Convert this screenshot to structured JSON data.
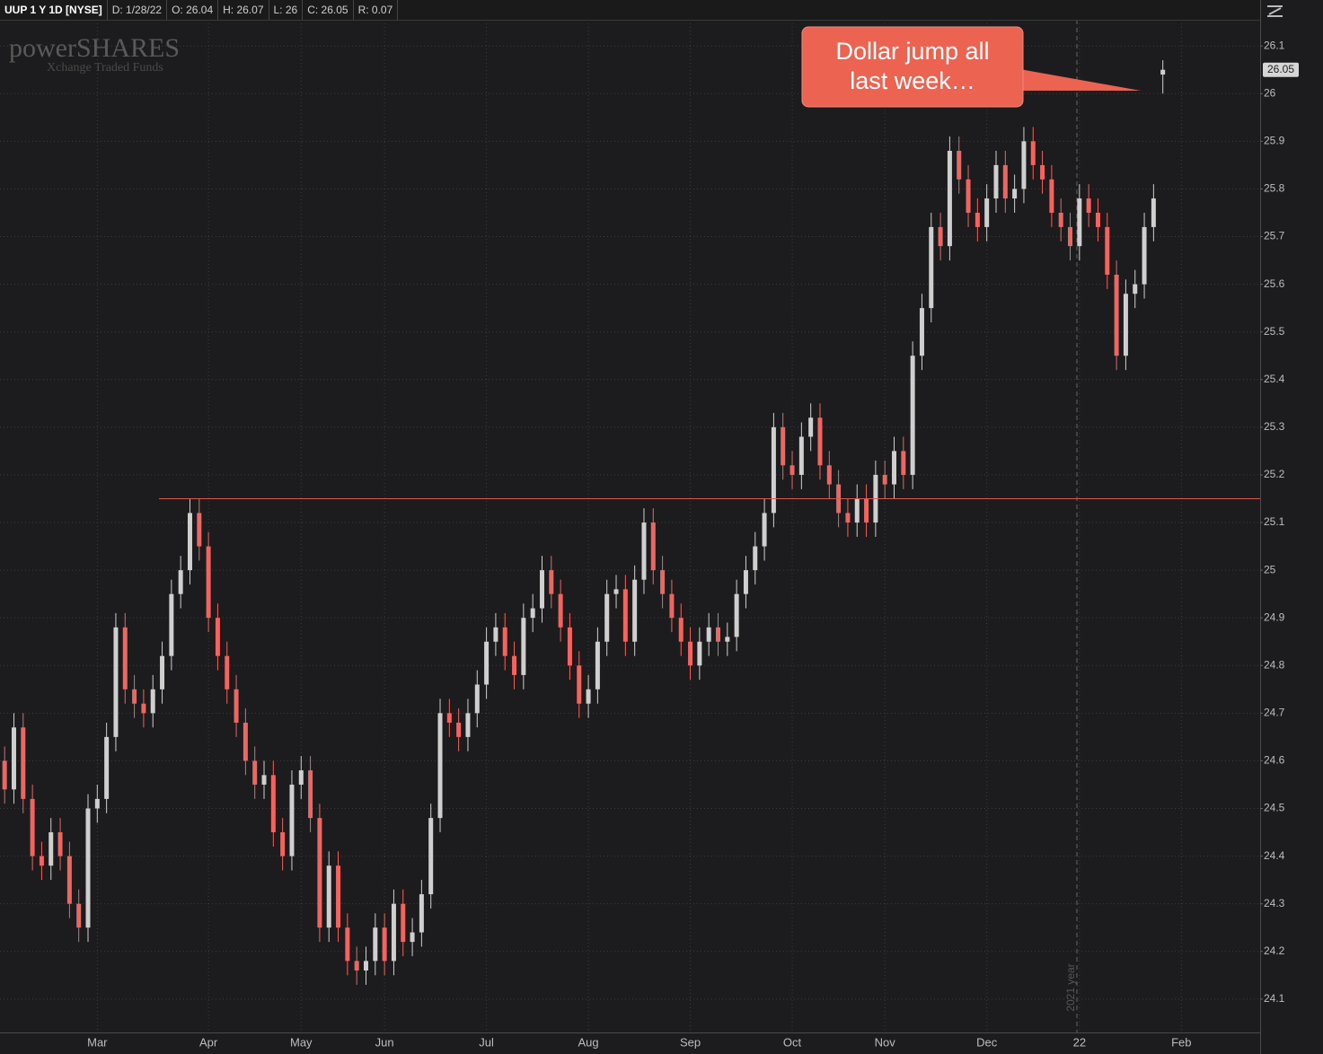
{
  "chart_data": {
    "type": "candlestick",
    "title": "UUP 1 Y 1D [NYSE]",
    "header_fields": [
      "D: 1/28/22",
      "O: 26.04",
      "H: 26.07",
      "L: 26",
      "C: 26.05",
      "R: 0.07"
    ],
    "watermark": [
      "powerSHARES",
      "Xchange Traded Funds"
    ],
    "annotation": [
      "Dollar jump all",
      "last week…"
    ],
    "year_marker": "2021 year",
    "last_price": 26.05,
    "hline": 25.15,
    "hline_color": "#e0554d",
    "up_color": "#cfcfcf",
    "down_color": "#f06560",
    "grid": true,
    "ylim": [
      24.03,
      26.155
    ],
    "yticks": [
      24.1,
      24.2,
      24.3,
      24.4,
      24.5,
      24.6,
      24.7,
      24.8,
      24.9,
      25,
      25.1,
      25.2,
      25.3,
      25.4,
      25.5,
      25.6,
      25.7,
      25.8,
      25.9,
      26,
      26.1
    ],
    "categories": [
      null,
      null,
      null,
      null,
      null,
      null,
      null,
      null,
      null,
      null,
      "Mar",
      null,
      null,
      null,
      null,
      null,
      null,
      null,
      null,
      null,
      null,
      null,
      "Apr",
      null,
      null,
      null,
      null,
      null,
      null,
      null,
      null,
      null,
      "May",
      null,
      null,
      null,
      null,
      null,
      null,
      null,
      null,
      "Jun",
      null,
      null,
      null,
      null,
      null,
      null,
      null,
      null,
      null,
      null,
      "Jul",
      null,
      null,
      null,
      null,
      null,
      null,
      null,
      null,
      null,
      null,
      "Aug",
      null,
      null,
      null,
      null,
      null,
      null,
      null,
      null,
      null,
      null,
      "Sep",
      null,
      null,
      null,
      null,
      null,
      null,
      null,
      null,
      null,
      null,
      "Oct",
      null,
      null,
      null,
      null,
      null,
      null,
      null,
      null,
      null,
      "Nov",
      null,
      null,
      null,
      null,
      null,
      null,
      null,
      null,
      null,
      null,
      "Dec",
      null,
      null,
      null,
      null,
      null,
      null,
      null,
      null,
      null,
      "22",
      null,
      null,
      null,
      null,
      null,
      null,
      null,
      null,
      null,
      null,
      "Feb",
      null,
      null,
      null,
      null,
      null,
      null,
      null,
      null
    ],
    "open": [
      24.6,
      24.54,
      24.67,
      24.52,
      24.4,
      24.38,
      24.45,
      24.4,
      24.3,
      24.25,
      24.5,
      24.52,
      24.65,
      24.88,
      24.75,
      24.72,
      24.7,
      24.75,
      24.82,
      24.95,
      25.0,
      25.12,
      25.05,
      24.9,
      24.82,
      24.75,
      24.68,
      24.6,
      24.55,
      24.57,
      24.45,
      24.4,
      24.55,
      24.58,
      24.48,
      24.25,
      24.38,
      24.25,
      24.18,
      24.16,
      24.18,
      24.25,
      24.18,
      24.3,
      24.22,
      24.24,
      24.32,
      24.48,
      24.7,
      24.68,
      24.65,
      24.7,
      24.76,
      24.85,
      24.88,
      24.82,
      24.78,
      24.9,
      24.92,
      25.0,
      24.95,
      24.88,
      24.8,
      24.72,
      24.75,
      24.85,
      24.95,
      24.96,
      24.85,
      24.98,
      25.1,
      25.0,
      24.95,
      24.9,
      24.85,
      24.8,
      24.85,
      24.88,
      24.85,
      24.86,
      24.95,
      25.0,
      25.05,
      25.12,
      25.3,
      25.22,
      25.2,
      25.28,
      25.32,
      25.22,
      25.18,
      25.12,
      25.1,
      25.15,
      25.1,
      25.2,
      25.18,
      25.25,
      25.2,
      25.45,
      25.55,
      25.72,
      25.68,
      25.88,
      25.82,
      25.75,
      25.72,
      25.78,
      25.85,
      25.78,
      25.8,
      25.9,
      25.85,
      25.82,
      25.75,
      25.72,
      25.68,
      25.78,
      25.75,
      25.72,
      25.62,
      25.45,
      25.58,
      25.6,
      25.72,
      26.04,
      null,
      null,
      null,
      null,
      null,
      null,
      null,
      null,
      null,
      null
    ],
    "high": [
      24.63,
      24.7,
      24.7,
      24.55,
      24.43,
      24.48,
      24.48,
      24.43,
      24.33,
      24.53,
      24.55,
      24.68,
      24.91,
      24.91,
      24.78,
      24.75,
      24.78,
      24.85,
      24.98,
      25.03,
      25.15,
      25.15,
      25.08,
      24.93,
      24.85,
      24.78,
      24.71,
      24.63,
      24.6,
      24.6,
      24.48,
      24.58,
      24.61,
      24.61,
      24.51,
      24.41,
      24.41,
      24.28,
      24.21,
      24.21,
      24.28,
      24.28,
      24.33,
      24.33,
      24.27,
      24.35,
      24.51,
      24.73,
      24.73,
      24.71,
      24.73,
      24.79,
      24.88,
      24.91,
      24.91,
      24.85,
      24.93,
      24.95,
      25.03,
      25.03,
      24.98,
      24.91,
      24.83,
      24.78,
      24.88,
      24.98,
      24.99,
      24.99,
      25.01,
      25.13,
      25.13,
      25.03,
      24.98,
      24.93,
      24.88,
      24.88,
      24.91,
      24.91,
      24.89,
      24.98,
      25.03,
      25.08,
      25.15,
      25.33,
      25.33,
      25.25,
      25.31,
      25.35,
      25.35,
      25.25,
      25.21,
      25.15,
      25.18,
      25.18,
      25.23,
      25.23,
      25.28,
      25.28,
      25.48,
      25.58,
      25.75,
      25.75,
      25.91,
      25.91,
      25.85,
      25.78,
      25.81,
      25.88,
      25.88,
      25.83,
      25.93,
      25.93,
      25.88,
      25.85,
      25.78,
      25.75,
      25.81,
      25.81,
      25.78,
      25.75,
      25.65,
      25.61,
      25.63,
      25.75,
      25.81,
      26.07,
      null,
      null,
      null,
      null,
      null,
      null,
      null,
      null,
      null,
      null
    ],
    "low": [
      24.51,
      24.51,
      24.49,
      24.37,
      24.35,
      24.35,
      24.37,
      24.27,
      24.22,
      24.22,
      24.47,
      24.49,
      24.62,
      24.72,
      24.69,
      24.67,
      24.67,
      24.72,
      24.79,
      24.92,
      24.97,
      25.02,
      24.87,
      24.79,
      24.72,
      24.65,
      24.57,
      24.52,
      24.52,
      24.42,
      24.37,
      24.37,
      24.52,
      24.45,
      24.22,
      24.22,
      24.22,
      24.15,
      24.13,
      24.13,
      24.15,
      24.15,
      24.15,
      24.19,
      24.19,
      24.21,
      24.29,
      24.45,
      24.65,
      24.62,
      24.62,
      24.67,
      24.73,
      24.82,
      24.79,
      24.75,
      24.75,
      24.87,
      24.89,
      24.92,
      24.85,
      24.77,
      24.69,
      24.69,
      24.72,
      24.82,
      24.92,
      24.82,
      24.82,
      24.95,
      24.97,
      24.92,
      24.87,
      24.82,
      24.77,
      24.77,
      24.82,
      24.82,
      24.82,
      24.83,
      24.92,
      24.97,
      25.02,
      25.09,
      25.19,
      25.17,
      25.17,
      25.25,
      25.19,
      25.15,
      25.09,
      25.07,
      25.07,
      25.07,
      25.07,
      25.15,
      25.15,
      25.17,
      25.17,
      25.42,
      25.52,
      25.65,
      25.65,
      25.79,
      25.72,
      25.69,
      25.69,
      25.75,
      25.75,
      25.75,
      25.77,
      25.82,
      25.79,
      25.72,
      25.69,
      25.65,
      25.65,
      25.72,
      25.69,
      25.59,
      25.42,
      25.42,
      25.55,
      25.57,
      25.69,
      26.0,
      null,
      null,
      null,
      null,
      null,
      null,
      null,
      null,
      null,
      null
    ],
    "close": [
      24.54,
      24.67,
      24.52,
      24.4,
      24.38,
      24.45,
      24.4,
      24.3,
      24.25,
      24.5,
      24.52,
      24.65,
      24.88,
      24.75,
      24.72,
      24.7,
      24.75,
      24.82,
      24.95,
      25.0,
      25.12,
      25.05,
      24.9,
      24.82,
      24.75,
      24.68,
      24.6,
      24.55,
      24.57,
      24.45,
      24.4,
      24.55,
      24.58,
      24.48,
      24.25,
      24.38,
      24.25,
      24.18,
      24.16,
      24.18,
      24.25,
      24.18,
      24.3,
      24.22,
      24.24,
      24.32,
      24.48,
      24.7,
      24.68,
      24.65,
      24.7,
      24.76,
      24.85,
      24.88,
      24.82,
      24.78,
      24.9,
      24.92,
      25.0,
      24.95,
      24.88,
      24.8,
      24.72,
      24.75,
      24.85,
      24.95,
      24.96,
      24.85,
      24.98,
      25.1,
      25.0,
      24.95,
      24.9,
      24.85,
      24.8,
      24.85,
      24.88,
      24.85,
      24.86,
      24.95,
      25.0,
      25.05,
      25.12,
      25.3,
      25.22,
      25.2,
      25.28,
      25.32,
      25.22,
      25.18,
      25.12,
      25.1,
      25.15,
      25.1,
      25.2,
      25.18,
      25.25,
      25.2,
      25.45,
      25.55,
      25.72,
      25.68,
      25.88,
      25.82,
      25.75,
      25.72,
      25.78,
      25.85,
      25.78,
      25.8,
      25.9,
      25.85,
      25.82,
      25.75,
      25.72,
      25.68,
      25.78,
      25.75,
      25.72,
      25.62,
      25.45,
      25.58,
      25.6,
      25.72,
      25.78,
      26.05,
      null,
      null,
      null,
      null,
      null,
      null,
      null,
      null,
      null,
      null
    ]
  }
}
